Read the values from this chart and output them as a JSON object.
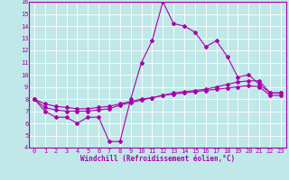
{
  "title": "",
  "xlabel": "Windchill (Refroidissement éolien,°C)",
  "ylabel": "",
  "xlim": [
    -0.5,
    23.5
  ],
  "ylim": [
    4,
    16
  ],
  "yticks": [
    4,
    5,
    6,
    7,
    8,
    9,
    10,
    11,
    12,
    13,
    14,
    15,
    16
  ],
  "xticks": [
    0,
    1,
    2,
    3,
    4,
    5,
    6,
    7,
    8,
    9,
    10,
    11,
    12,
    13,
    14,
    15,
    16,
    17,
    18,
    19,
    20,
    21,
    22,
    23
  ],
  "bg_color": "#c0e8e8",
  "grid_color": "#ffffff",
  "line_color": "#aa00aa",
  "line1_y": [
    8.0,
    7.0,
    6.5,
    6.5,
    6.0,
    6.5,
    6.5,
    4.5,
    4.5,
    8.0,
    11.0,
    12.8,
    16.0,
    14.2,
    14.0,
    13.5,
    12.3,
    12.8,
    11.5,
    9.8,
    10.0,
    9.2,
    8.5,
    8.5
  ],
  "line2_y": [
    8.0,
    7.3,
    7.1,
    7.0,
    7.0,
    7.0,
    7.1,
    7.2,
    7.5,
    7.7,
    7.9,
    8.1,
    8.3,
    8.5,
    8.6,
    8.7,
    8.8,
    9.0,
    9.2,
    9.4,
    9.5,
    9.5,
    8.5,
    8.5
  ],
  "line3_y": [
    8.0,
    7.6,
    7.4,
    7.3,
    7.2,
    7.2,
    7.3,
    7.4,
    7.6,
    7.8,
    8.0,
    8.1,
    8.3,
    8.4,
    8.5,
    8.6,
    8.7,
    8.8,
    8.9,
    9.0,
    9.1,
    9.0,
    8.3,
    8.3
  ],
  "xlabel_fontsize": 5.5,
  "tick_fontsize": 5,
  "marker_size": 2.0
}
